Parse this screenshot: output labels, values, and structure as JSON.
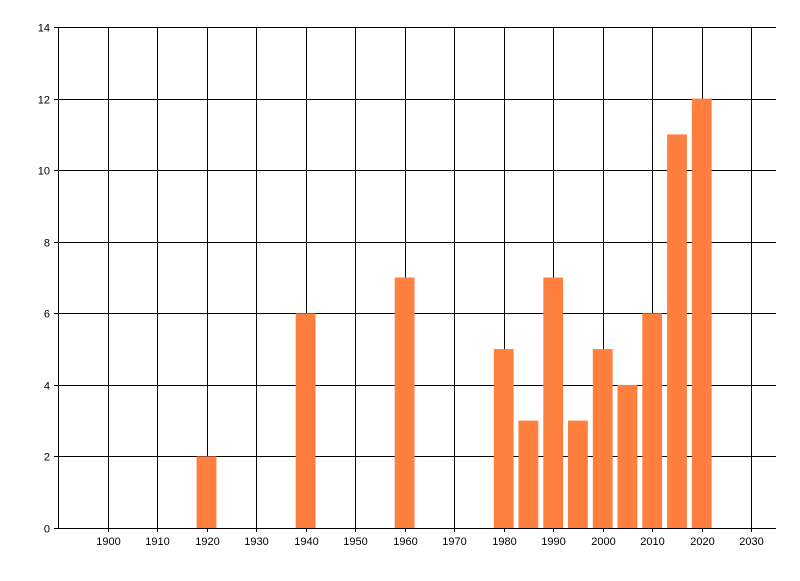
{
  "chart_data": {
    "type": "bar",
    "title": "",
    "xlabel": "",
    "ylabel": "",
    "x": [
      1920,
      1940,
      1960,
      1980,
      1985,
      1990,
      1995,
      2000,
      2005,
      2010,
      2015,
      2020
    ],
    "values": [
      2,
      6,
      7,
      5,
      3,
      7,
      3,
      5,
      4,
      6,
      11,
      12
    ],
    "xlim": [
      1890,
      2035
    ],
    "ylim": [
      0,
      14
    ],
    "xticks": [
      1900,
      1910,
      1920,
      1930,
      1940,
      1950,
      1960,
      1970,
      1980,
      1990,
      2000,
      2010,
      2020,
      2030
    ],
    "yticks": [
      0,
      2,
      4,
      6,
      8,
      10,
      12,
      14
    ],
    "bar_width": 4,
    "grid": true,
    "legend": "none",
    "colors": {
      "bar": "#ff7f3f",
      "grid": "#000000",
      "axis": "#000000",
      "background": "#ffffff"
    }
  }
}
